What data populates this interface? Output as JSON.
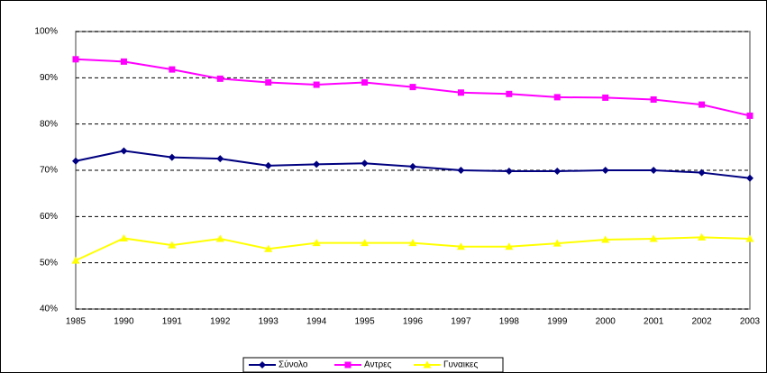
{
  "chart_data": {
    "type": "line",
    "categories": [
      "1985",
      "1990",
      "1991",
      "1992",
      "1993",
      "1994",
      "1995",
      "1996",
      "1997",
      "1998",
      "1999",
      "2000",
      "2001",
      "2002",
      "2003"
    ],
    "series": [
      {
        "name": "Σύνολο",
        "color": "#000080",
        "marker": "diamond",
        "values": [
          72,
          74.2,
          72.8,
          72.5,
          71,
          71.3,
          71.5,
          70.8,
          70,
          69.8,
          69.8,
          70,
          70,
          69.5,
          68.3
        ]
      },
      {
        "name": "Αντρες",
        "color": "#ff00ff",
        "marker": "square",
        "values": [
          94,
          93.5,
          91.8,
          89.8,
          89,
          88.5,
          89,
          88,
          86.8,
          86.5,
          85.8,
          85.7,
          85.3,
          84.2,
          81.8
        ]
      },
      {
        "name": "Γυναικες",
        "color": "#ffff00",
        "marker": "triangle",
        "values": [
          50.5,
          55.3,
          53.8,
          55.2,
          53,
          54.3,
          54.3,
          54.3,
          53.5,
          53.5,
          54.2,
          55,
          55.2,
          55.5,
          55.2
        ]
      }
    ],
    "ylim": [
      40,
      100
    ],
    "yticks": [
      {
        "value": 40,
        "label": "40%"
      },
      {
        "value": 50,
        "label": "50%"
      },
      {
        "value": 60,
        "label": "60%"
      },
      {
        "value": 70,
        "label": "70%"
      },
      {
        "value": 80,
        "label": "80%"
      },
      {
        "value": 90,
        "label": "90%"
      },
      {
        "value": 100,
        "label": "100%"
      }
    ],
    "grid": true
  }
}
